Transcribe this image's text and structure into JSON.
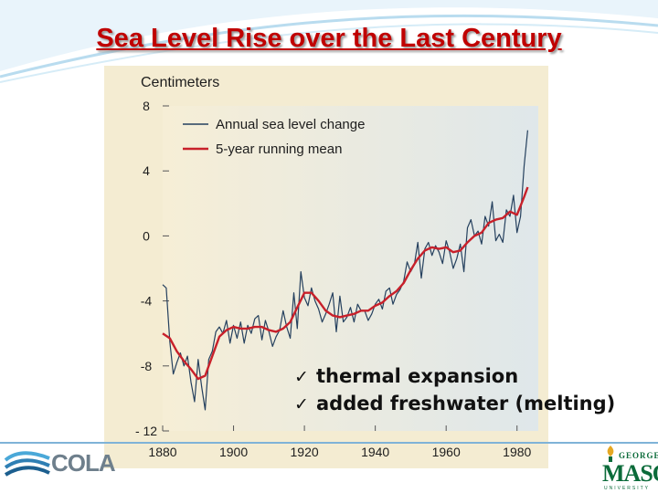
{
  "slide": {
    "title": "Sea Level Rise over the Last Century",
    "bullets": [
      {
        "check": "✓",
        "text": "thermal expansion"
      },
      {
        "check": "✓",
        "text": "added freshwater (melting)"
      }
    ]
  },
  "logos": {
    "left": {
      "text": "COLA",
      "icon": "cola-wave-icon"
    },
    "right": {
      "top": "GEORGE",
      "main": "MASON",
      "bottom": "UNIVERSITY",
      "icon": "torch-icon"
    }
  },
  "colors": {
    "title": "#c00000",
    "annual_line": "#25405e",
    "mean_line": "#c8202a",
    "panel_bg": "#f4ecd2"
  },
  "chart_data": {
    "type": "line",
    "ylabel": "Centimeters",
    "xlim": [
      1880,
      1986
    ],
    "ylim": [
      -12,
      8
    ],
    "xticks": [
      1880,
      1900,
      1920,
      1940,
      1960,
      1980
    ],
    "yticks": [
      8,
      4,
      0,
      -4,
      -8,
      -12
    ],
    "ytick_labels": [
      "8",
      "4",
      "0",
      "-4",
      "-8",
      "- 12"
    ],
    "grid": false,
    "legend_position": "top-left",
    "series": [
      {
        "name": "Annual sea level change",
        "color": "#25405e",
        "x": [
          1880,
          1881,
          1882,
          1883,
          1884,
          1885,
          1886,
          1887,
          1888,
          1889,
          1890,
          1891,
          1892,
          1893,
          1894,
          1895,
          1896,
          1897,
          1898,
          1899,
          1900,
          1901,
          1902,
          1903,
          1904,
          1905,
          1906,
          1907,
          1908,
          1909,
          1910,
          1911,
          1912,
          1913,
          1914,
          1915,
          1916,
          1917,
          1918,
          1919,
          1920,
          1921,
          1922,
          1923,
          1924,
          1925,
          1926,
          1927,
          1928,
          1929,
          1930,
          1931,
          1932,
          1933,
          1934,
          1935,
          1936,
          1937,
          1938,
          1939,
          1940,
          1941,
          1942,
          1943,
          1944,
          1945,
          1946,
          1947,
          1948,
          1949,
          1950,
          1951,
          1952,
          1953,
          1954,
          1955,
          1956,
          1957,
          1958,
          1959,
          1960,
          1961,
          1962,
          1963,
          1964,
          1965,
          1966,
          1967,
          1968,
          1969,
          1970,
          1971,
          1972,
          1973,
          1974,
          1975,
          1976,
          1977,
          1978,
          1979,
          1980,
          1981,
          1982,
          1983
        ],
        "y": [
          -3.0,
          -3.2,
          -6.5,
          -8.5,
          -7.8,
          -7.2,
          -8.0,
          -7.4,
          -9.0,
          -10.2,
          -7.6,
          -9.3,
          -10.7,
          -7.6,
          -7.1,
          -5.9,
          -5.6,
          -6.0,
          -5.2,
          -6.6,
          -5.5,
          -6.3,
          -5.3,
          -6.6,
          -5.5,
          -6.0,
          -5.1,
          -4.9,
          -6.4,
          -5.2,
          -5.9,
          -6.8,
          -6.2,
          -5.8,
          -4.6,
          -5.6,
          -6.3,
          -3.5,
          -5.7,
          -2.2,
          -3.8,
          -4.3,
          -3.2,
          -4.0,
          -4.5,
          -5.3,
          -4.8,
          -4.2,
          -3.5,
          -5.9,
          -3.7,
          -5.3,
          -5.0,
          -4.4,
          -5.3,
          -4.2,
          -4.6,
          -4.6,
          -5.2,
          -4.8,
          -4.2,
          -3.9,
          -4.5,
          -3.4,
          -3.2,
          -4.2,
          -3.6,
          -3.3,
          -2.8,
          -1.6,
          -2.2,
          -1.8,
          -0.4,
          -2.6,
          -0.8,
          -0.4,
          -1.2,
          -0.6,
          -1.0,
          -1.7,
          -0.3,
          -1.0,
          -2.0,
          -1.4,
          -0.5,
          -2.2,
          0.5,
          1.0,
          0.0,
          0.3,
          -0.5,
          1.2,
          0.6,
          2.1,
          -0.3,
          0.1,
          -0.4,
          1.6,
          1.2,
          2.5,
          0.2,
          1.2,
          4.3,
          6.5
        ]
      },
      {
        "name": "5-year running mean",
        "color": "#c8202a",
        "x": [
          1880,
          1882,
          1884,
          1886,
          1888,
          1890,
          1892,
          1894,
          1896,
          1898,
          1900,
          1902,
          1904,
          1906,
          1908,
          1910,
          1912,
          1914,
          1916,
          1918,
          1920,
          1922,
          1924,
          1926,
          1928,
          1930,
          1932,
          1934,
          1936,
          1938,
          1940,
          1942,
          1944,
          1946,
          1948,
          1950,
          1952,
          1954,
          1956,
          1958,
          1960,
          1962,
          1964,
          1966,
          1968,
          1970,
          1972,
          1974,
          1976,
          1978,
          1980,
          1982,
          1983
        ],
        "y": [
          -6.0,
          -6.3,
          -7.1,
          -7.7,
          -8.2,
          -8.8,
          -8.6,
          -7.4,
          -6.2,
          -5.8,
          -5.6,
          -5.7,
          -5.7,
          -5.6,
          -5.6,
          -5.8,
          -5.9,
          -5.7,
          -5.3,
          -4.4,
          -3.5,
          -3.5,
          -4.0,
          -4.6,
          -4.9,
          -5.0,
          -4.9,
          -4.8,
          -4.6,
          -4.6,
          -4.3,
          -4.1,
          -3.7,
          -3.4,
          -2.9,
          -2.1,
          -1.4,
          -0.9,
          -0.7,
          -0.8,
          -0.7,
          -1.0,
          -0.9,
          -0.4,
          0.0,
          0.2,
          0.8,
          1.0,
          1.1,
          1.5,
          1.3,
          2.4,
          3.0
        ]
      }
    ]
  }
}
